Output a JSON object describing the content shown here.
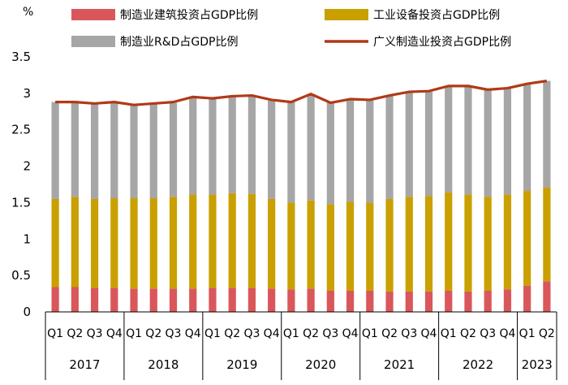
{
  "chart_data": {
    "type": "bar",
    "stacked": true,
    "unit_label": "%",
    "ylim": [
      0,
      3.5
    ],
    "yticks": [
      "0",
      "0.5",
      "1",
      "1.5",
      "2",
      "2.5",
      "3",
      "3.5"
    ],
    "ytick_values": [
      0,
      0.5,
      1,
      1.5,
      2,
      2.5,
      3,
      3.5
    ],
    "categories": [
      "Q1",
      "Q2",
      "Q3",
      "Q4",
      "Q1",
      "Q2",
      "Q3",
      "Q4",
      "Q1",
      "Q2",
      "Q3",
      "Q4",
      "Q1",
      "Q2",
      "Q3",
      "Q4",
      "Q1",
      "Q2",
      "Q3",
      "Q4",
      "Q1",
      "Q2",
      "Q3",
      "Q4",
      "Q1",
      "Q2"
    ],
    "years": [
      {
        "label": "2017",
        "count": 4
      },
      {
        "label": "2018",
        "count": 4
      },
      {
        "label": "2019",
        "count": 4
      },
      {
        "label": "2020",
        "count": 4
      },
      {
        "label": "2021",
        "count": 4
      },
      {
        "label": "2022",
        "count": 4
      },
      {
        "label": "2023",
        "count": 2
      }
    ],
    "series": [
      {
        "name": "制造业建筑投资占GDP比例",
        "kind": "bar",
        "color": "#D9575B",
        "values": [
          0.34,
          0.34,
          0.33,
          0.33,
          0.32,
          0.32,
          0.32,
          0.32,
          0.33,
          0.33,
          0.33,
          0.32,
          0.31,
          0.32,
          0.29,
          0.29,
          0.29,
          0.28,
          0.28,
          0.28,
          0.29,
          0.28,
          0.29,
          0.31,
          0.36,
          0.42
        ]
      },
      {
        "name": "工业设备投资占GDP比例",
        "kind": "bar",
        "color": "#C9A000",
        "values": [
          1.21,
          1.24,
          1.22,
          1.23,
          1.24,
          1.24,
          1.26,
          1.29,
          1.28,
          1.3,
          1.29,
          1.23,
          1.19,
          1.21,
          1.19,
          1.22,
          1.21,
          1.27,
          1.3,
          1.31,
          1.35,
          1.33,
          1.29,
          1.3,
          1.3,
          1.29
        ]
      },
      {
        "name": "制造业R&D占GDP比例",
        "kind": "bar",
        "color": "#A6A6A6",
        "values": [
          1.33,
          1.29,
          1.3,
          1.31,
          1.27,
          1.29,
          1.29,
          1.34,
          1.31,
          1.32,
          1.34,
          1.35,
          1.38,
          1.46,
          1.39,
          1.4,
          1.4,
          1.42,
          1.44,
          1.43,
          1.46,
          1.48,
          1.46,
          1.46,
          1.46,
          1.46
        ]
      },
      {
        "name": "广义制造业投资占GDP比例",
        "kind": "line",
        "color": "#B03A17",
        "values": [
          2.88,
          2.88,
          2.86,
          2.88,
          2.84,
          2.86,
          2.88,
          2.95,
          2.93,
          2.96,
          2.97,
          2.91,
          2.88,
          2.99,
          2.87,
          2.92,
          2.91,
          2.97,
          3.02,
          3.03,
          3.1,
          3.1,
          3.05,
          3.07,
          3.13,
          3.17
        ]
      }
    ]
  }
}
